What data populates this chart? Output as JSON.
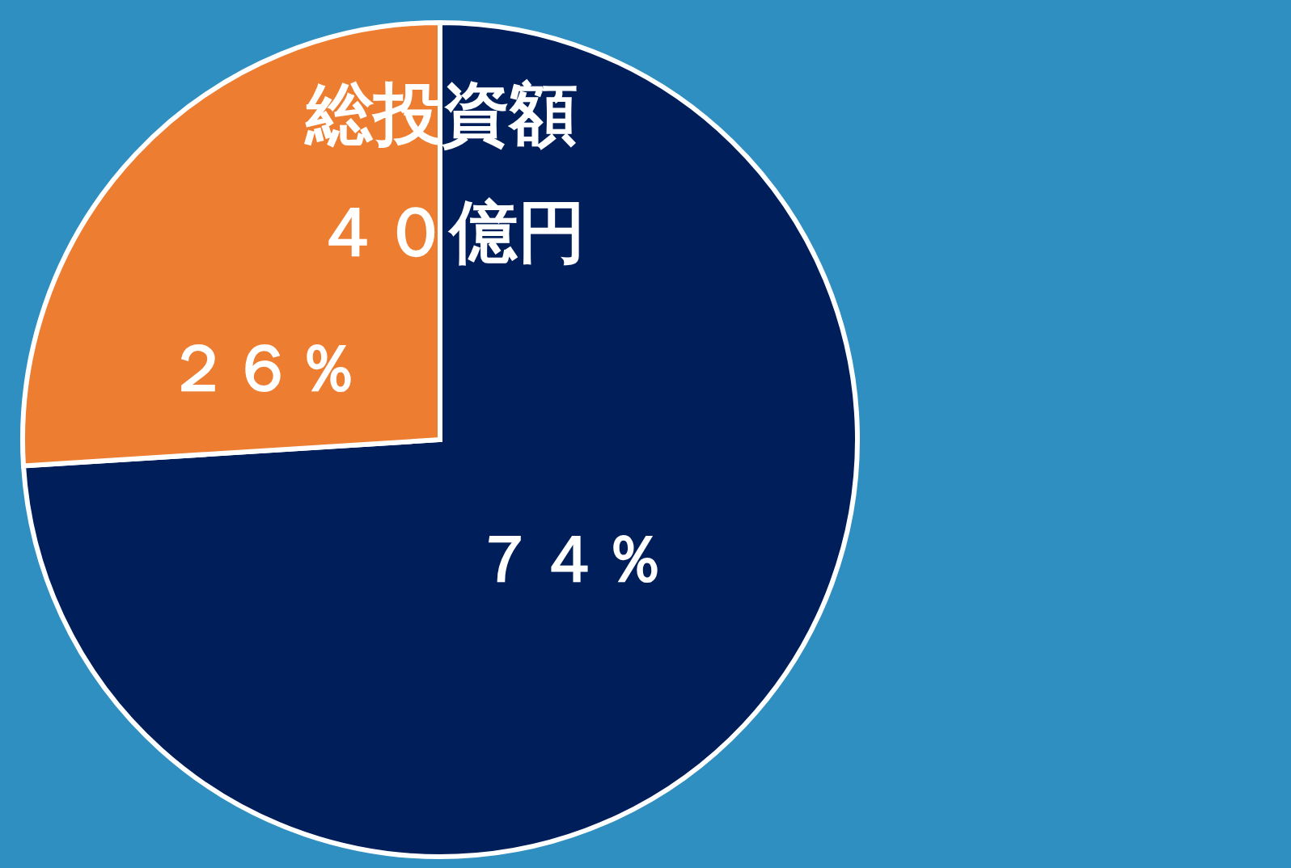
{
  "chart_data": {
    "type": "pie",
    "title": "総投資額",
    "subtitle": "４０億円",
    "categories": [
      null,
      null
    ],
    "values": [
      74,
      26
    ],
    "colors": [
      "#001e5a",
      "#ed7d31"
    ],
    "value_labels": [
      "７４％",
      "２６％"
    ]
  }
}
